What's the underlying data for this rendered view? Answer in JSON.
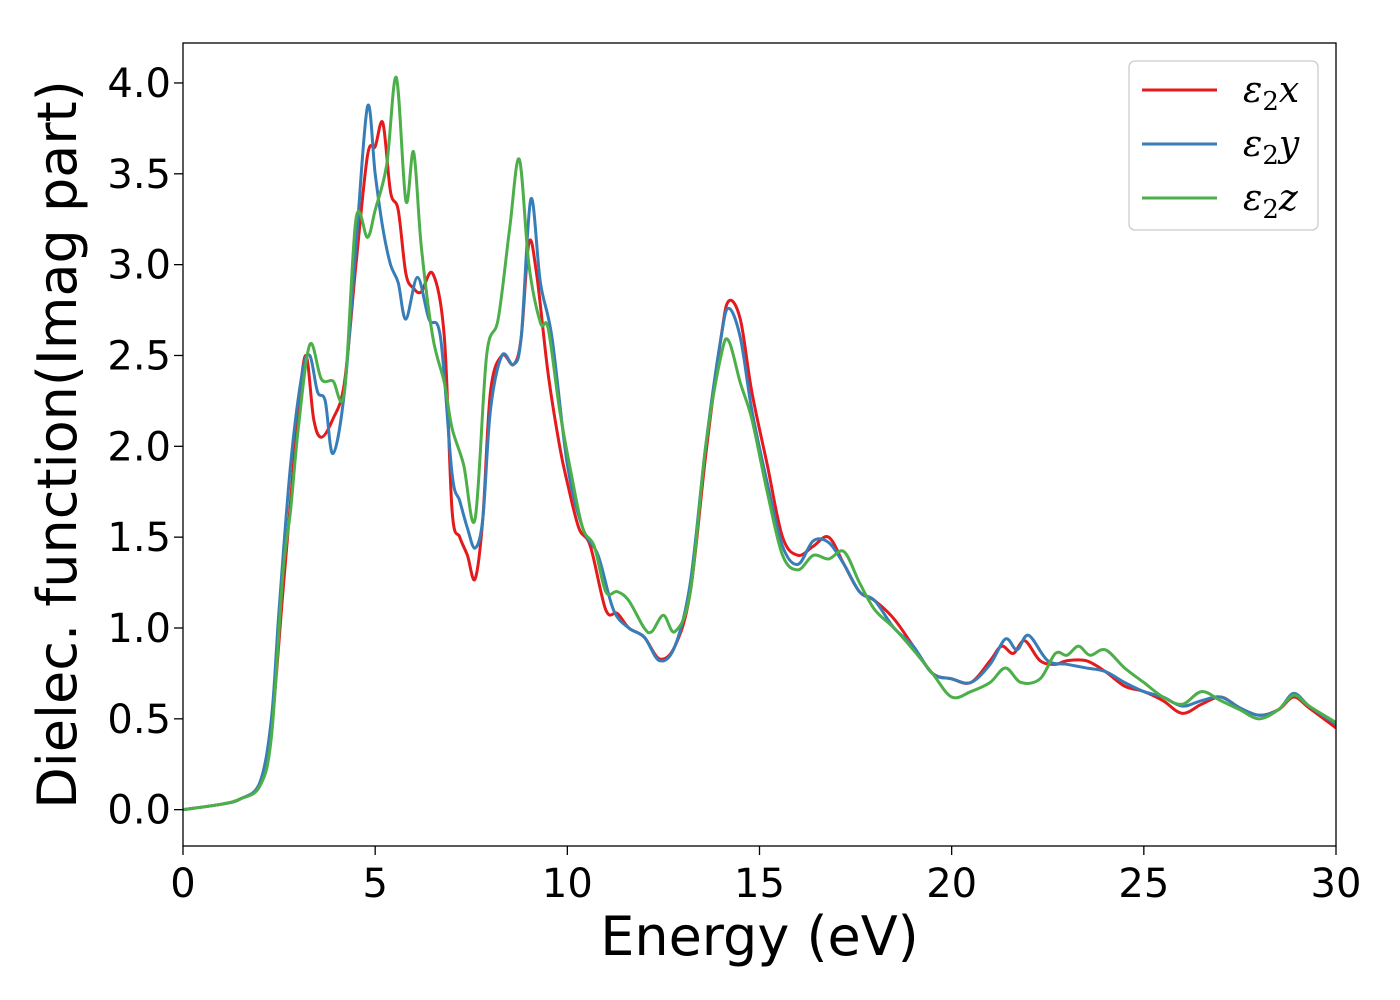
{
  "chart_data": {
    "type": "line",
    "xlabel": "Energy (eV)",
    "ylabel": "Dielec. function(Imag part)",
    "xlim": [
      0,
      30
    ],
    "ylim": [
      -0.2,
      4.22
    ],
    "xticks": [
      0,
      5,
      10,
      15,
      20,
      25,
      30
    ],
    "xtick_labels": [
      "0",
      "5",
      "10",
      "15",
      "20",
      "25",
      "30"
    ],
    "yticks": [
      0.0,
      0.5,
      1.0,
      1.5,
      2.0,
      2.5,
      3.0,
      3.5,
      4.0
    ],
    "ytick_labels": [
      "0.0",
      "0.5",
      "1.0",
      "1.5",
      "2.0",
      "2.5",
      "3.0",
      "3.5",
      "4.0"
    ],
    "grid": false,
    "legend_position": "top-right",
    "series": [
      {
        "name": "ε2x",
        "legend_base": "ε",
        "legend_sub": "2",
        "legend_suffix": "x",
        "color": "#e41a1c",
        "x": [
          0,
          1,
          1.5,
          2,
          2.3,
          2.6,
          2.8,
          3.0,
          3.2,
          3.4,
          3.6,
          3.9,
          4.2,
          4.5,
          4.8,
          5.0,
          5.2,
          5.4,
          5.6,
          5.8,
          6.0,
          6.2,
          6.5,
          6.8,
          7.0,
          7.2,
          7.4,
          7.6,
          7.8,
          8.0,
          8.3,
          8.6,
          8.8,
          9.0,
          9.2,
          9.5,
          9.8,
          10.0,
          10.3,
          10.6,
          11.0,
          11.3,
          11.6,
          12.0,
          12.4,
          12.8,
          13.2,
          13.6,
          14.0,
          14.2,
          14.5,
          14.8,
          15.2,
          15.6,
          16.0,
          16.4,
          16.8,
          17.2,
          17.6,
          18.0,
          18.5,
          19.0,
          19.5,
          20.0,
          20.5,
          21.0,
          21.3,
          21.6,
          21.9,
          22.3,
          22.7,
          23.0,
          23.5,
          24.0,
          24.5,
          25.0,
          25.5,
          26.0,
          26.5,
          27.0,
          27.5,
          28.0,
          28.5,
          28.9,
          29.3,
          30.0
        ],
        "y": [
          0.0,
          0.03,
          0.06,
          0.14,
          0.45,
          1.2,
          1.7,
          2.2,
          2.5,
          2.15,
          2.05,
          2.15,
          2.35,
          3.0,
          3.6,
          3.65,
          3.78,
          3.4,
          3.3,
          2.95,
          2.87,
          2.85,
          2.95,
          2.6,
          1.65,
          1.5,
          1.4,
          1.27,
          1.6,
          2.3,
          2.5,
          2.45,
          2.6,
          3.12,
          2.95,
          2.4,
          2.0,
          1.8,
          1.55,
          1.45,
          1.1,
          1.08,
          1.0,
          0.95,
          0.83,
          0.9,
          1.2,
          1.95,
          2.6,
          2.8,
          2.7,
          2.3,
          1.9,
          1.5,
          1.4,
          1.45,
          1.5,
          1.35,
          1.2,
          1.15,
          1.05,
          0.9,
          0.75,
          0.72,
          0.7,
          0.82,
          0.9,
          0.86,
          0.93,
          0.82,
          0.8,
          0.82,
          0.82,
          0.76,
          0.68,
          0.65,
          0.6,
          0.53,
          0.58,
          0.62,
          0.56,
          0.52,
          0.55,
          0.62,
          0.56,
          0.45
        ]
      },
      {
        "name": "ε2y",
        "legend_base": "ε",
        "legend_sub": "2",
        "legend_suffix": "y",
        "color": "#377eb8",
        "x": [
          0,
          1,
          1.5,
          2,
          2.3,
          2.5,
          2.8,
          3.1,
          3.3,
          3.5,
          3.7,
          3.9,
          4.2,
          4.5,
          4.8,
          5.0,
          5.2,
          5.4,
          5.6,
          5.8,
          6.1,
          6.4,
          6.7,
          7.0,
          7.2,
          7.4,
          7.6,
          7.8,
          8.0,
          8.3,
          8.6,
          8.8,
          9.05,
          9.3,
          9.6,
          10.0,
          10.4,
          10.8,
          11.2,
          11.6,
          12.0,
          12.4,
          12.8,
          13.2,
          13.6,
          14.0,
          14.2,
          14.5,
          14.8,
          15.2,
          15.6,
          16.0,
          16.4,
          16.8,
          17.2,
          17.6,
          18.0,
          18.5,
          19.0,
          19.5,
          20.0,
          20.5,
          21.0,
          21.4,
          21.7,
          22.0,
          22.5,
          23.0,
          23.5,
          24.0,
          24.5,
          25.0,
          25.5,
          26.0,
          26.5,
          27.0,
          27.5,
          28.0,
          28.5,
          28.9,
          29.3,
          30.0
        ],
        "y": [
          0.0,
          0.03,
          0.06,
          0.15,
          0.5,
          1.1,
          1.9,
          2.4,
          2.5,
          2.3,
          2.25,
          1.96,
          2.3,
          3.1,
          3.87,
          3.5,
          3.2,
          3.0,
          2.9,
          2.7,
          2.93,
          2.7,
          2.6,
          1.85,
          1.7,
          1.55,
          1.44,
          1.6,
          2.2,
          2.5,
          2.45,
          2.6,
          3.36,
          2.9,
          2.6,
          1.9,
          1.55,
          1.4,
          1.1,
          1.0,
          0.95,
          0.82,
          0.9,
          1.25,
          2.0,
          2.6,
          2.76,
          2.6,
          2.2,
          1.8,
          1.45,
          1.35,
          1.48,
          1.47,
          1.35,
          1.2,
          1.15,
          1.0,
          0.9,
          0.75,
          0.72,
          0.7,
          0.8,
          0.94,
          0.88,
          0.96,
          0.82,
          0.8,
          0.78,
          0.76,
          0.7,
          0.65,
          0.62,
          0.57,
          0.6,
          0.62,
          0.56,
          0.52,
          0.55,
          0.64,
          0.57,
          0.47
        ]
      },
      {
        "name": "ε2z",
        "legend_base": "ε",
        "legend_sub": "2",
        "legend_suffix": "z",
        "color": "#4daf4a",
        "x": [
          0,
          1,
          1.5,
          2,
          2.3,
          2.6,
          2.8,
          3.0,
          3.3,
          3.6,
          3.9,
          4.2,
          4.5,
          4.8,
          5.0,
          5.3,
          5.55,
          5.8,
          6.0,
          6.2,
          6.5,
          6.8,
          7.0,
          7.3,
          7.6,
          7.9,
          8.2,
          8.5,
          8.75,
          9.0,
          9.3,
          9.5,
          9.8,
          10.1,
          10.4,
          10.7,
          11.0,
          11.3,
          11.6,
          12.0,
          12.2,
          12.5,
          12.8,
          13.2,
          13.6,
          14.0,
          14.2,
          14.5,
          14.8,
          15.2,
          15.6,
          16.0,
          16.4,
          16.8,
          17.2,
          17.6,
          18.0,
          18.5,
          19.0,
          19.5,
          20.0,
          20.5,
          21.0,
          21.4,
          21.8,
          22.3,
          22.7,
          23.0,
          23.3,
          23.6,
          24.0,
          24.5,
          25.0,
          25.5,
          26.0,
          26.5,
          27.0,
          27.5,
          28.0,
          28.5,
          28.9,
          29.3,
          30.0
        ],
        "y": [
          0.0,
          0.03,
          0.06,
          0.13,
          0.4,
          1.3,
          1.65,
          2.1,
          2.56,
          2.37,
          2.36,
          2.3,
          3.25,
          3.15,
          3.3,
          3.55,
          4.03,
          3.35,
          3.62,
          3.1,
          2.6,
          2.35,
          2.1,
          1.9,
          1.6,
          2.5,
          2.7,
          3.2,
          3.58,
          3.0,
          2.68,
          2.65,
          2.2,
          1.85,
          1.55,
          1.45,
          1.2,
          1.2,
          1.15,
          1.0,
          0.98,
          1.07,
          0.98,
          1.2,
          2.0,
          2.5,
          2.58,
          2.35,
          2.15,
          1.75,
          1.4,
          1.32,
          1.4,
          1.38,
          1.42,
          1.25,
          1.1,
          1.0,
          0.88,
          0.75,
          0.62,
          0.65,
          0.7,
          0.78,
          0.7,
          0.72,
          0.86,
          0.85,
          0.9,
          0.85,
          0.88,
          0.78,
          0.7,
          0.62,
          0.58,
          0.65,
          0.6,
          0.55,
          0.5,
          0.55,
          0.63,
          0.57,
          0.48
        ]
      }
    ]
  }
}
